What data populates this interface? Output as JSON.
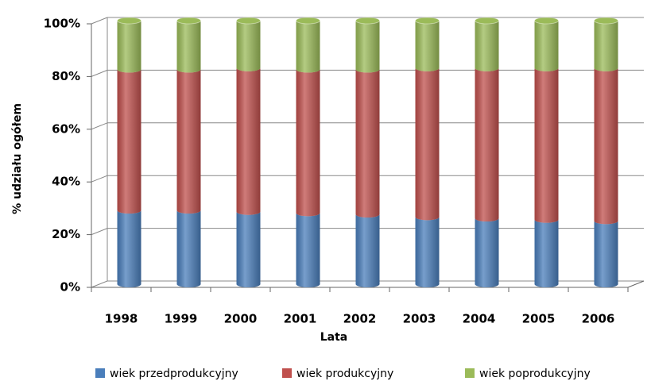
{
  "chart_data": {
    "type": "bar",
    "stacked": true,
    "x_label": "Lata",
    "y_label": "% udziału ogółem",
    "categories": [
      "1998",
      "1999",
      "2000",
      "2001",
      "2002",
      "2003",
      "2004",
      "2005",
      "2006"
    ],
    "series": [
      {
        "name": "wiek przedprodukcyjny",
        "color": "#4a7ebb",
        "values": [
          28,
          28,
          27.5,
          27,
          26.5,
          25.5,
          25,
          24.5,
          24
        ]
      },
      {
        "name": "wiek produkcyjny",
        "color": "#c0504d",
        "values": [
          53.5,
          53.5,
          54.5,
          54.5,
          55,
          56.5,
          57,
          57.5,
          58
        ]
      },
      {
        "name": "wiek poprodukcyjny",
        "color": "#9bbb59",
        "values": [
          18.5,
          18.5,
          18,
          18.5,
          18.5,
          18,
          18,
          18,
          18
        ]
      }
    ],
    "ylim": [
      0,
      100
    ],
    "yticks": [
      {
        "value": 0,
        "label": "0%"
      },
      {
        "value": 20,
        "label": "20%"
      },
      {
        "value": 40,
        "label": "40%"
      },
      {
        "value": 60,
        "label": "60%"
      },
      {
        "value": 80,
        "label": "80%"
      },
      {
        "value": 100,
        "label": "100%"
      }
    ],
    "grid": true,
    "legend": "bottom"
  }
}
